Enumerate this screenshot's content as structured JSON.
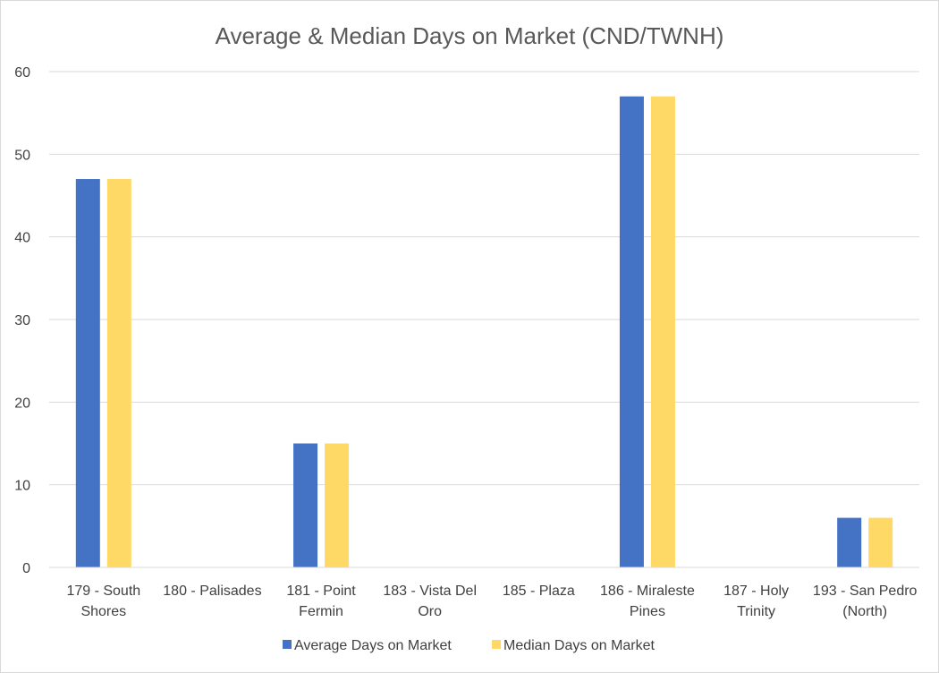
{
  "chart_data": {
    "type": "bar",
    "title": "Average & Median Days on Market (CND/TWNH)",
    "categories": [
      [
        "179 - South",
        "Shores"
      ],
      [
        "180 - Palisades"
      ],
      [
        "181 - Point",
        "Fermin"
      ],
      [
        "183 - Vista Del",
        "Oro"
      ],
      [
        "185 - Plaza"
      ],
      [
        "186 - Miraleste",
        "Pines"
      ],
      [
        "187 - Holy",
        "Trinity"
      ],
      [
        "193 - San Pedro",
        "(North)"
      ]
    ],
    "series": [
      {
        "name": "Average Days on Market",
        "color": "#4472c4",
        "values": [
          47,
          0,
          15,
          0,
          0,
          57,
          0,
          6
        ]
      },
      {
        "name": "Median Days on Market",
        "color": "#ffd966",
        "values": [
          47,
          0,
          15,
          0,
          0,
          57,
          0,
          6
        ]
      }
    ],
    "ylim": [
      0,
      60
    ],
    "yticks": [
      0,
      10,
      20,
      30,
      40,
      50,
      60
    ],
    "grid": true,
    "legend_position": "bottom"
  }
}
